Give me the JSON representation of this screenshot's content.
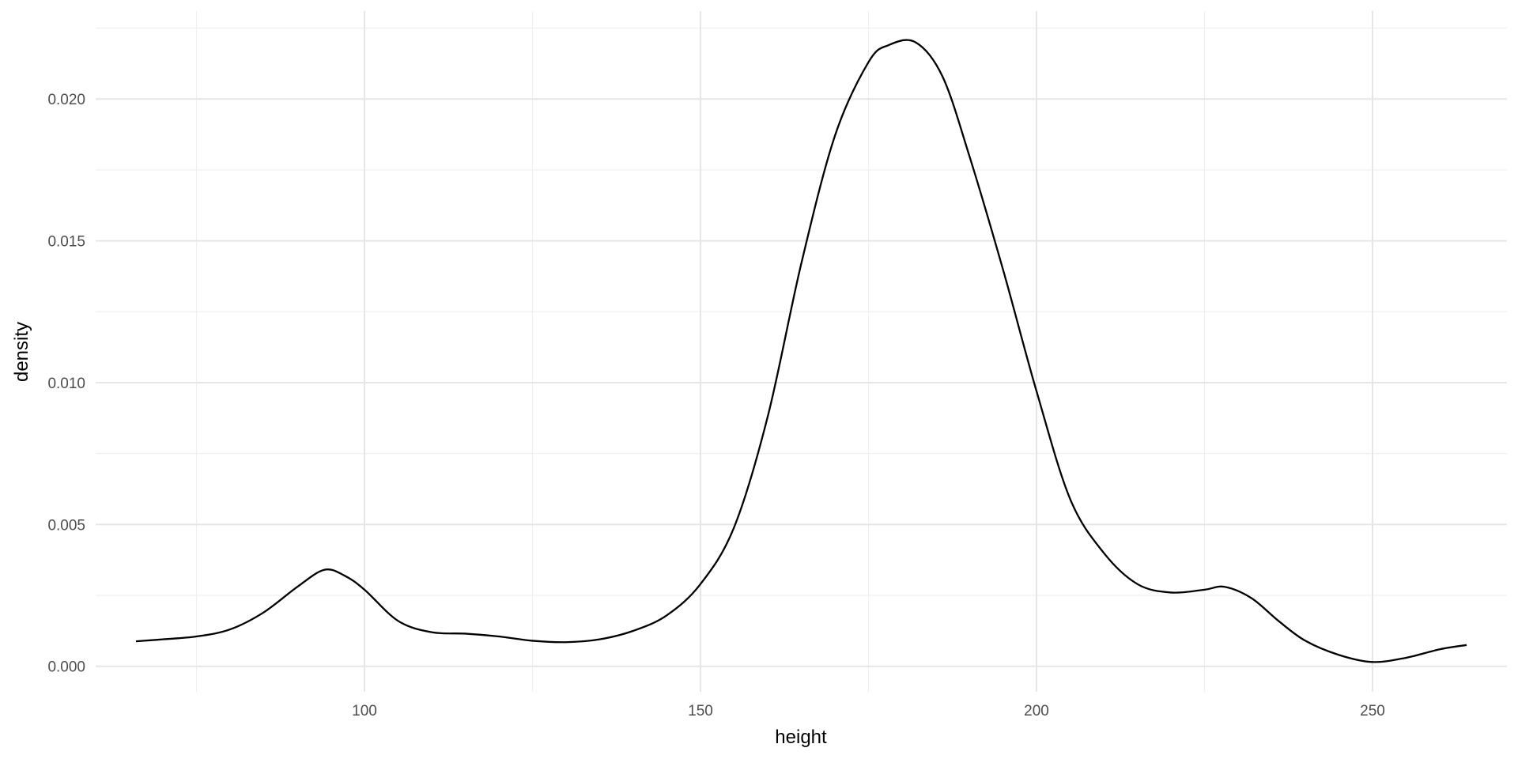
{
  "chart_data": {
    "type": "line",
    "title": "",
    "xlabel": "height",
    "ylabel": "density",
    "xlim": [
      60,
      270
    ],
    "ylim": [
      -0.0009,
      0.0231
    ],
    "x_ticks": [
      100,
      150,
      200,
      250
    ],
    "x_tick_labels": [
      "100",
      "150",
      "200",
      "250"
    ],
    "x_minor_ticks": [
      75,
      125,
      175,
      225
    ],
    "y_ticks": [
      0.0,
      0.005,
      0.01,
      0.015,
      0.02
    ],
    "y_tick_labels": [
      "0.000",
      "0.005",
      "0.010",
      "0.015",
      "0.020"
    ],
    "y_minor_ticks": [
      0.0025,
      0.0075,
      0.0125,
      0.0175,
      0.0225
    ],
    "grid": true,
    "series": [
      {
        "x": [
          66,
          70,
          75,
          80,
          85,
          90,
          94,
          97,
          100,
          105,
          110,
          115,
          120,
          125,
          130,
          135,
          140,
          145,
          150,
          155,
          160,
          165,
          170,
          175,
          178,
          182,
          186,
          190,
          195,
          200,
          205,
          210,
          215,
          220,
          225,
          228,
          232,
          236,
          240,
          245,
          250,
          255,
          260,
          264
        ],
        "y": [
          0.00088,
          0.00095,
          0.00105,
          0.0013,
          0.0019,
          0.0028,
          0.0034,
          0.0032,
          0.0027,
          0.0016,
          0.0012,
          0.00115,
          0.00105,
          0.0009,
          0.00085,
          0.00095,
          0.00125,
          0.0018,
          0.0029,
          0.0049,
          0.0088,
          0.0142,
          0.0187,
          0.0213,
          0.0219,
          0.022,
          0.0208,
          0.018,
          0.014,
          0.0097,
          0.0059,
          0.004,
          0.0029,
          0.0026,
          0.0027,
          0.0028,
          0.0024,
          0.0016,
          0.0009,
          0.0004,
          0.00015,
          0.0003,
          0.0006,
          0.00075
        ],
        "color": "#000000"
      }
    ]
  }
}
